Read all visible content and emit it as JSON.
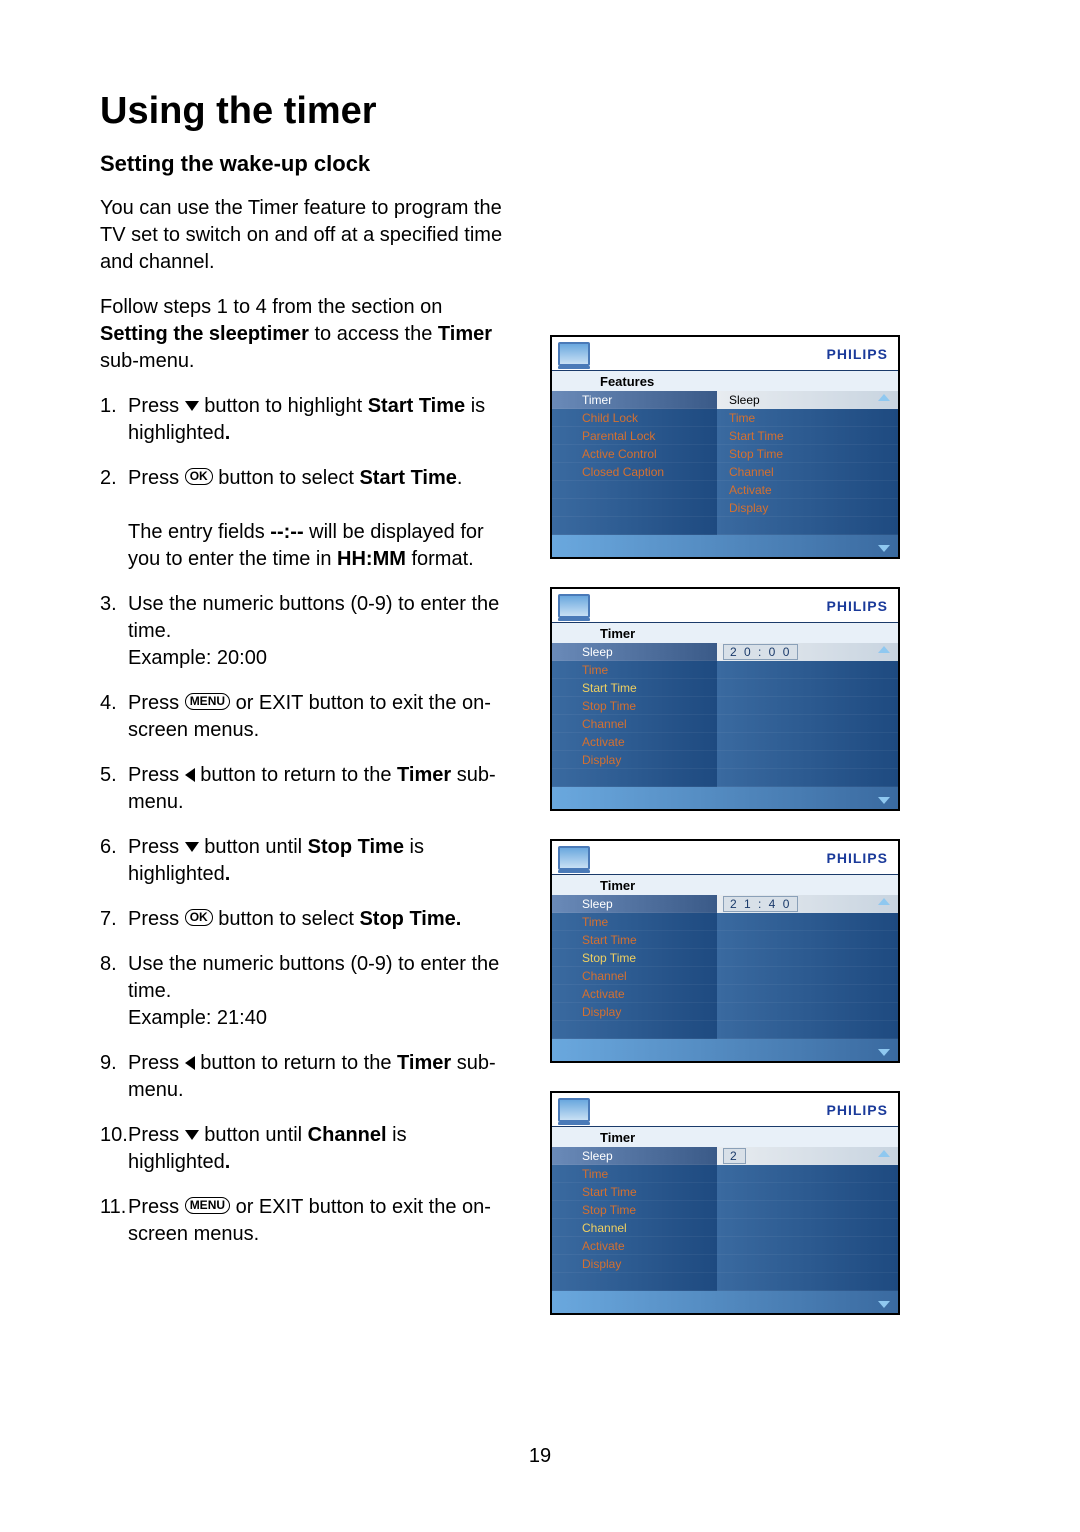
{
  "page_number": "19",
  "title": "Using the timer",
  "subtitle": "Setting the wake-up clock",
  "intro_1": "You can use the Timer feature to program the TV set to switch on and off at a specified time and channel.",
  "intro_2a": "Follow steps 1 to 4 from the section on ",
  "intro_2b": "Setting the sleeptimer",
  "intro_2c": " to access the ",
  "intro_2d": "Timer",
  "intro_2e": " sub-menu.",
  "steps": {
    "s1a": "Press ",
    "s1b": " button to highlight ",
    "s1c": "Start Time",
    "s1d": " is highlighted",
    "s1e": ".",
    "s2a": "Press ",
    "s2b": " button to select ",
    "s2c": "Start Time",
    "s2d": ".",
    "s2note1": "The entry fields ",
    "s2note2": "--:--",
    "s2note3": " will be displayed for you to enter the time in ",
    "s2note4": "HH:MM",
    "s2note5": " format.",
    "s3a": "Use the numeric buttons (0-9) to enter the time.",
    "s3b": "Example: 20:00",
    "s4a": "Press ",
    "s4b": " or EXIT button to exit the on-screen menus.",
    "s5a": "Press ",
    "s5b": " button to return to the ",
    "s5c": "Timer",
    "s5d": " sub-menu.",
    "s6a": "Press ",
    "s6b": " button until ",
    "s6c": "Stop Time",
    "s6d": " is highlighted",
    "s6e": ".",
    "s7a": "Press ",
    "s7b": " button to select ",
    "s7c": "Stop Time.",
    "s8a": "Use the numeric buttons (0-9) to enter the time.",
    "s8b": "Example: 21:40",
    "s9a": "Press ",
    "s9b": " button to return to the ",
    "s9c": "Timer",
    "s9d": " sub-menu.",
    "s10a": "Press ",
    "s10b": " button until ",
    "s10c": "Channel",
    "s10d": " is highlighted",
    "s10e": ".",
    "s11a": "Press ",
    "s11b": " or EXIT button to exit the on-screen menus."
  },
  "ok_label": "OK",
  "menu_label": "MENU",
  "philips": "PHILIPS",
  "menus": {
    "m1": {
      "breadcrumb": "Features",
      "left": [
        "Timer",
        "Child Lock",
        "Parental Lock",
        "Active Control",
        "Closed Caption",
        "",
        "",
        ""
      ],
      "left_highlight": 0,
      "right": [
        "Sleep",
        "Time",
        "Start Time",
        "Stop Time",
        "Channel",
        "Activate",
        "Display",
        ""
      ],
      "right_highlight": 0
    },
    "m2": {
      "breadcrumb": "Timer",
      "left": [
        "Sleep",
        "Time",
        "Start Time",
        "Stop Time",
        "Channel",
        "Activate",
        "Display",
        ""
      ],
      "left_highlight": 0,
      "left_selected": 2,
      "value": "2 0 : 0 0"
    },
    "m3": {
      "breadcrumb": "Timer",
      "left": [
        "Sleep",
        "Time",
        "Start Time",
        "Stop Time",
        "Channel",
        "Activate",
        "Display",
        ""
      ],
      "left_highlight": 0,
      "left_selected": 3,
      "value": "2 1 : 4 0"
    },
    "m4": {
      "breadcrumb": "Timer",
      "left": [
        "Sleep",
        "Time",
        "Start Time",
        "Stop Time",
        "Channel",
        "Activate",
        "Display",
        ""
      ],
      "left_highlight": 0,
      "left_selected": 4,
      "value": "2"
    }
  },
  "colors": {
    "menu_text": "#d47030",
    "menu_bg_dark": "#1e4a80",
    "menu_bg_light": "#3a6aa0",
    "highlight_light_bg": "#e0e6ee",
    "highlight_dark_bg": "#5a7aa8",
    "philips_color": "#1a3a9a"
  }
}
